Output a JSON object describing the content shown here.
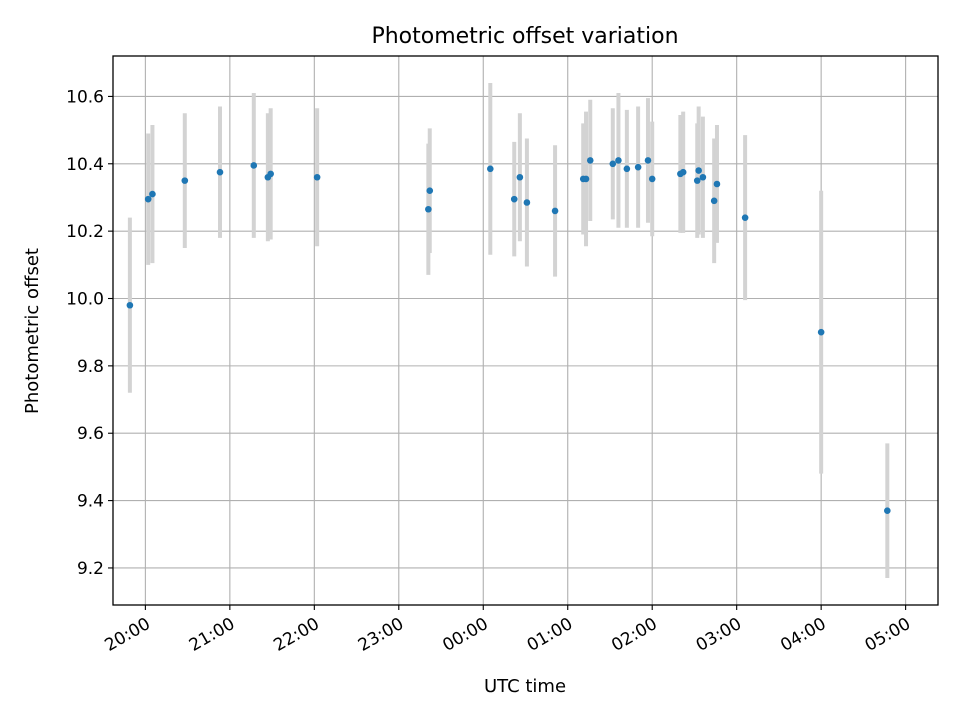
{
  "chart_data": {
    "type": "scatter",
    "title": "Photometric offset variation",
    "xlabel": "UTC time",
    "ylabel": "Photometric offset",
    "x_is_time": true,
    "xlim": [
      "19:37",
      "05:23"
    ],
    "ylim": [
      9.09,
      10.72
    ],
    "xticks": [
      "20:00",
      "21:00",
      "22:00",
      "23:00",
      "00:00",
      "01:00",
      "02:00",
      "03:00",
      "04:00",
      "05:00"
    ],
    "yticks": [
      "9.2",
      "9.4",
      "9.6",
      "9.8",
      "10.0",
      "10.2",
      "10.4",
      "10.6"
    ],
    "grid": true,
    "point_color": "#1f77b4",
    "errorbar_color": "#d3d3d3",
    "points": [
      {
        "x": "19:49",
        "y": 9.98,
        "err": 0.26
      },
      {
        "x": "20:02",
        "y": 10.295,
        "err": 0.195
      },
      {
        "x": "20:05",
        "y": 10.31,
        "err": 0.205
      },
      {
        "x": "20:28",
        "y": 10.35,
        "err": 0.2
      },
      {
        "x": "20:53",
        "y": 10.375,
        "err": 0.195
      },
      {
        "x": "21:17",
        "y": 10.395,
        "err": 0.215
      },
      {
        "x": "21:27",
        "y": 10.36,
        "err": 0.19
      },
      {
        "x": "21:29",
        "y": 10.37,
        "err": 0.195
      },
      {
        "x": "22:02",
        "y": 10.36,
        "err": 0.205
      },
      {
        "x": "23:21",
        "y": 10.265,
        "err": 0.195
      },
      {
        "x": "23:22",
        "y": 10.32,
        "err": 0.185
      },
      {
        "x": "00:05",
        "y": 10.385,
        "err": 0.255
      },
      {
        "x": "00:22",
        "y": 10.295,
        "err": 0.17
      },
      {
        "x": "00:26",
        "y": 10.36,
        "err": 0.19
      },
      {
        "x": "00:31",
        "y": 10.285,
        "err": 0.19
      },
      {
        "x": "00:51",
        "y": 10.26,
        "err": 0.195
      },
      {
        "x": "01:11",
        "y": 10.355,
        "err": 0.165
      },
      {
        "x": "01:13",
        "y": 10.355,
        "err": 0.2
      },
      {
        "x": "01:16",
        "y": 10.41,
        "err": 0.18
      },
      {
        "x": "01:32",
        "y": 10.4,
        "err": 0.165
      },
      {
        "x": "01:36",
        "y": 10.41,
        "err": 0.2
      },
      {
        "x": "01:42",
        "y": 10.385,
        "err": 0.175
      },
      {
        "x": "01:50",
        "y": 10.39,
        "err": 0.18
      },
      {
        "x": "01:57",
        "y": 10.41,
        "err": 0.185
      },
      {
        "x": "02:00",
        "y": 10.355,
        "err": 0.17
      },
      {
        "x": "02:20",
        "y": 10.37,
        "err": 0.175
      },
      {
        "x": "02:22",
        "y": 10.375,
        "err": 0.18
      },
      {
        "x": "02:32",
        "y": 10.35,
        "err": 0.17
      },
      {
        "x": "02:33",
        "y": 10.38,
        "err": 0.19
      },
      {
        "x": "02:36",
        "y": 10.36,
        "err": 0.18
      },
      {
        "x": "02:44",
        "y": 10.29,
        "err": 0.185
      },
      {
        "x": "02:46",
        "y": 10.34,
        "err": 0.175
      },
      {
        "x": "03:06",
        "y": 10.24,
        "err": 0.245
      },
      {
        "x": "04:00",
        "y": 9.9,
        "err": 0.42
      },
      {
        "x": "04:47",
        "y": 9.37,
        "err": 0.2
      }
    ]
  }
}
